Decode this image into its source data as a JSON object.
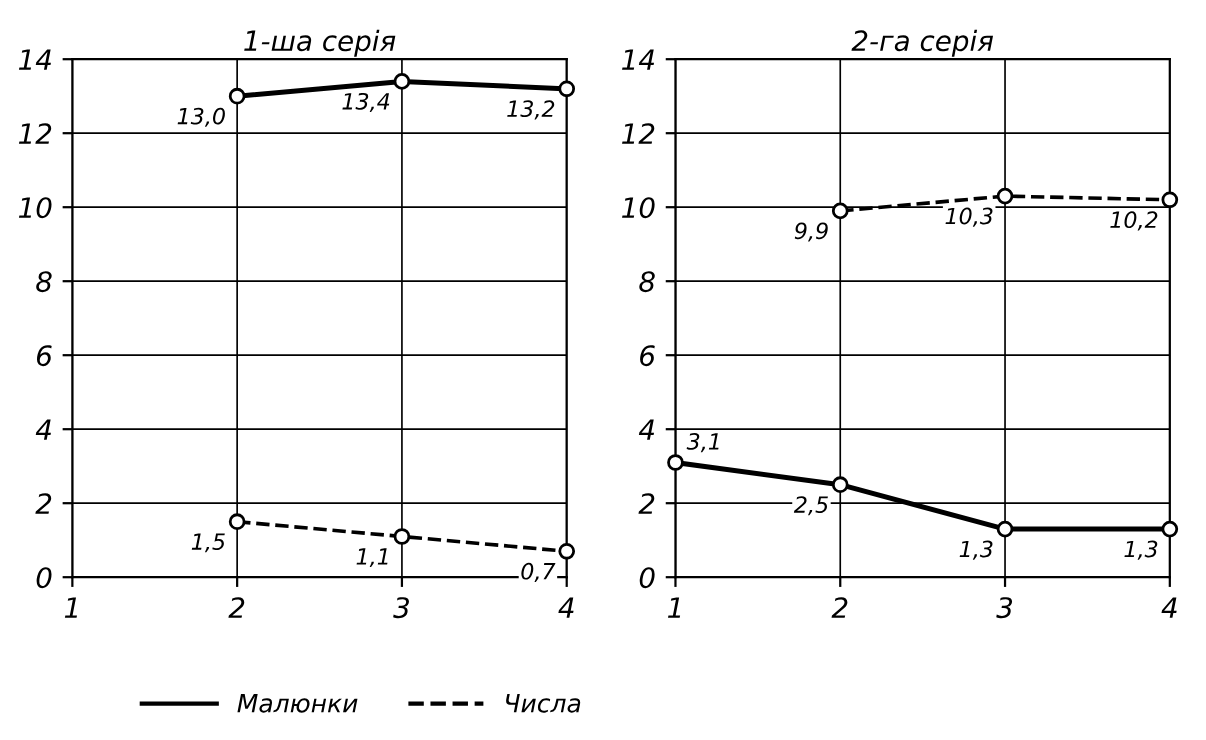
{
  "chart_data": [
    {
      "type": "line",
      "title": "1-ша серія",
      "xlim": [
        1,
        4
      ],
      "xticks": [
        1,
        2,
        3,
        4
      ],
      "ylim": [
        0,
        14
      ],
      "yticks": [
        0,
        2,
        4,
        6,
        8,
        10,
        12,
        14
      ],
      "grid": true,
      "marker": "circle",
      "legend": "bottom",
      "series": [
        {
          "name": "Малюнки",
          "color": "#000000",
          "line_style": "solid",
          "x": [
            2,
            3,
            4
          ],
          "values": [
            13.0,
            13.4,
            13.2
          ],
          "value_labels": [
            "13,0",
            "13,4",
            "13,2"
          ]
        },
        {
          "name": "Числа",
          "color": "#000000",
          "line_style": "dashed",
          "x": [
            2,
            3,
            4
          ],
          "values": [
            1.5,
            1.1,
            0.7
          ],
          "value_labels": [
            "1,5",
            "1,1",
            "0,7"
          ]
        }
      ]
    },
    {
      "type": "line",
      "title": "2-га серія",
      "xlim": [
        1,
        4
      ],
      "xticks": [
        1,
        2,
        3,
        4
      ],
      "ylim": [
        0,
        14
      ],
      "yticks": [
        0,
        2,
        4,
        6,
        8,
        10,
        12,
        14
      ],
      "grid": true,
      "marker": "circle",
      "series": [
        {
          "name": "Малюнки",
          "color": "#000000",
          "line_style": "solid",
          "x": [
            1,
            2,
            3,
            4
          ],
          "values": [
            3.1,
            2.5,
            1.3,
            1.3
          ],
          "value_labels": [
            "3,1",
            "2,5",
            "1,3",
            "1,3"
          ]
        },
        {
          "name": "Числа",
          "color": "#000000",
          "line_style": "dashed",
          "x": [
            2,
            3,
            4
          ],
          "values": [
            9.9,
            10.3,
            10.2
          ],
          "value_labels": [
            "9,9",
            "10,3",
            "10,2"
          ]
        }
      ]
    }
  ]
}
